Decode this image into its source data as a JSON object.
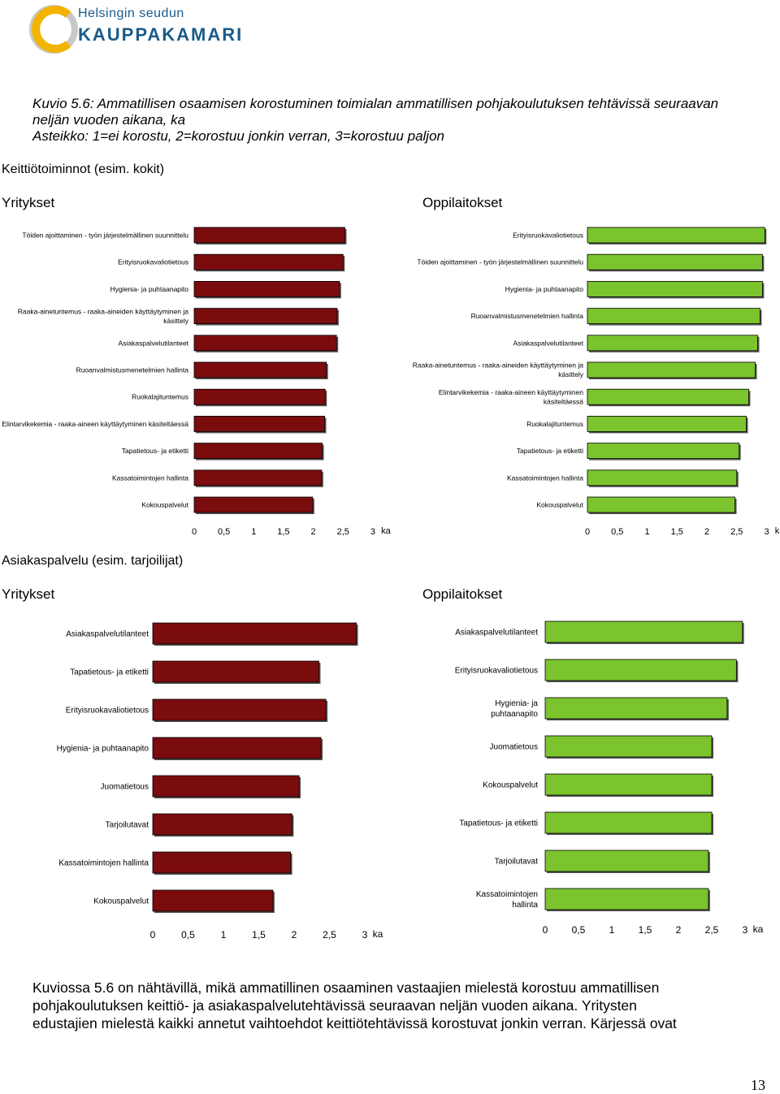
{
  "logo": {
    "line1": "Helsingin seudun",
    "line2": "KAUPPAKAMARI"
  },
  "caption": {
    "line1": "Kuvio 5.6: Ammatillisen osaamisen korostuminen toimialan ammatillisen pohjakoulutuksen tehtävissä seuraavan",
    "line2": "neljän vuoden aikana, ka",
    "line3": "Asteikko: 1=ei korostu, 2=korostuu jonkin verran, 3=korostuu paljon"
  },
  "sections": {
    "kitchen": "Keittiötoiminnot (esim. kokit)",
    "service": "Asiakaspalvelu (esim. tarjoilijat)"
  },
  "groups": {
    "companies": "Yritykset",
    "schools": "Oppilaitokset"
  },
  "colors": {
    "companies": "#7b0c0e",
    "schools": "#7bc42e"
  },
  "chart_data": [
    {
      "type": "bar",
      "orientation": "horizontal",
      "title": "Keittiötoiminnot (esim. kokit) – Yritykset",
      "xlabel": "ka",
      "xlim": [
        0,
        3
      ],
      "ticks": [
        "0",
        "0,5",
        "1",
        "1,5",
        "2",
        "2,5",
        "3"
      ],
      "categories": [
        [
          "Töiden ajoittaminen - työn järjestelmällinen suunnittelu"
        ],
        [
          "Erityisruokavaliotietous"
        ],
        [
          "Hygienia- ja puhtaanapito"
        ],
        [
          "Raaka-ainetuntemus - raaka-aineiden käyttäytyminen ja",
          "käsittely"
        ],
        [
          "Asiakaspalvelutilanteet"
        ],
        [
          "Ruoanvalmistusmenetelmien hallinta"
        ],
        [
          "Ruokalajituntemus"
        ],
        [
          "Elintarvikekemia - raaka-aineen käyttäytyminen käsiteltäessä"
        ],
        [
          "Tapatietous- ja etiketti"
        ],
        [
          "Kassatoimintojen hallinta"
        ],
        [
          "Kokouspalvelut"
        ]
      ],
      "values": [
        2.53,
        2.5,
        2.44,
        2.4,
        2.39,
        2.22,
        2.2,
        2.19,
        2.15,
        2.14,
        1.99
      ]
    },
    {
      "type": "bar",
      "orientation": "horizontal",
      "title": "Keittiötoiminnot (esim. kokit) – Oppilaitokset",
      "xlabel": "ka",
      "xlim": [
        0,
        3
      ],
      "ticks": [
        "0",
        "0,5",
        "1",
        "1,5",
        "2",
        "2,5",
        "3"
      ],
      "categories": [
        [
          "Erityisruokavaliotietous"
        ],
        [
          "Töiden ajoittaminen - työn järjestelmällinen suunnittelu"
        ],
        [
          "Hygienia- ja puhtaanapito"
        ],
        [
          "Ruoanvalmistusmenetelmien hallinta"
        ],
        [
          "Asiakaspalvelutilanteet"
        ],
        [
          "Raaka-ainetuntemus - raaka-aineiden käyttäytyminen ja",
          "käsittely"
        ],
        [
          "Elintarvikekemia - raaka-aineen käyttäytyminen",
          "käsiteltäessä"
        ],
        [
          "Ruokalajituntemus"
        ],
        [
          "Tapatietous- ja etiketti"
        ],
        [
          "Kassatoimintojen hallinta"
        ],
        [
          "Kokouspalvelut"
        ]
      ],
      "values": [
        2.97,
        2.93,
        2.93,
        2.89,
        2.85,
        2.81,
        2.7,
        2.66,
        2.54,
        2.5,
        2.47
      ]
    },
    {
      "type": "bar",
      "orientation": "horizontal",
      "title": "Asiakaspalvelu (esim. tarjoilijat) – Yritykset",
      "xlabel": "ka",
      "xlim": [
        0,
        3
      ],
      "ticks": [
        "0",
        "0,5",
        "1",
        "1,5",
        "2",
        "2,5",
        "3"
      ],
      "categories": [
        [
          "Asiakaspalvelutilanteet"
        ],
        [
          "Tapatietous- ja etiketti"
        ],
        [
          "Erityisruokavaliotietous"
        ],
        [
          "Hygienia- ja puhtaanapito"
        ],
        [
          "Juomatietous"
        ],
        [
          "Tarjoilutavat"
        ],
        [
          "Kassatoimintojen hallinta"
        ],
        [
          "Kokouspalvelut"
        ]
      ],
      "values": [
        2.88,
        2.35,
        2.45,
        2.38,
        2.07,
        1.97,
        1.95,
        1.7
      ]
    },
    {
      "type": "bar",
      "orientation": "horizontal",
      "title": "Asiakaspalvelu (esim. tarjoilijat) – Oppilaitokset",
      "xlabel": "ka",
      "xlim": [
        0,
        3
      ],
      "ticks": [
        "0",
        "0,5",
        "1",
        "1,5",
        "2",
        "2,5",
        "3"
      ],
      "categories": [
        [
          "Asiakaspalvelutilanteet"
        ],
        [
          "Erityisruokavaliotietous"
        ],
        [
          "Hygienia- ja",
          "puhtaanapito"
        ],
        [
          "Juomatietous"
        ],
        [
          "Kokouspalvelut"
        ],
        [
          "Tapatietous- ja etiketti"
        ],
        [
          "Tarjoilutavat"
        ],
        [
          "Kassatoimintojen",
          "hallinta"
        ]
      ],
      "values": [
        2.96,
        2.87,
        2.73,
        2.5,
        2.5,
        2.5,
        2.45,
        2.45
      ]
    }
  ],
  "body_text": {
    "line1": "Kuviossa 5.6 on nähtävillä, mikä ammatillinen osaaminen vastaajien mielestä korostuu ammatillisen",
    "line2": "pohjakoulutuksen keittiö- ja asiakaspalvelutehtävissä seuraavan neljän vuoden aikana. Yritysten",
    "line3": "edustajien mielestä kaikki annetut vaihtoehdot keittiötehtävissä korostuvat jonkin verran. Kärjessä ovat"
  },
  "page_number": "13"
}
